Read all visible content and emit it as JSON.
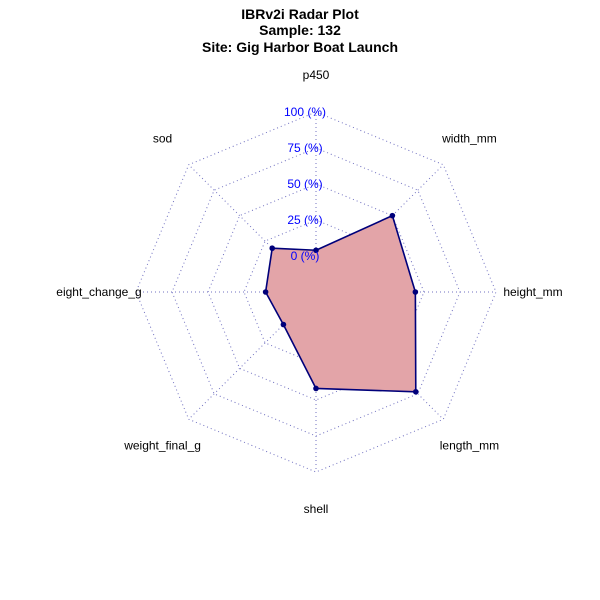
{
  "chart_data": {
    "type": "radar",
    "title_lines": [
      "IBRv2i Radar Plot",
      "Sample: 132",
      "Site: Gig Harbor Boat Launch"
    ],
    "axes": [
      "p450",
      "width_mm",
      "height_mm",
      "length_mm",
      "shell",
      "weight_final_g",
      "eight_change_g",
      "sod"
    ],
    "values": [
      4,
      50,
      44,
      73,
      42,
      7,
      10,
      18
    ],
    "value_unit": "%",
    "range": [
      0,
      100
    ],
    "grid_levels": [
      0,
      25,
      50,
      75,
      100
    ],
    "grid_labels": [
      "0 (%)",
      "25 (%)",
      "50 (%)",
      "75 (%)",
      "100 (%)"
    ],
    "colors": {
      "grid": "#7070c0",
      "grid_label": "#0000ff",
      "polygon_fill": "#e3a4a8",
      "polygon_stroke": "#00007a",
      "point": "#00007a"
    }
  }
}
